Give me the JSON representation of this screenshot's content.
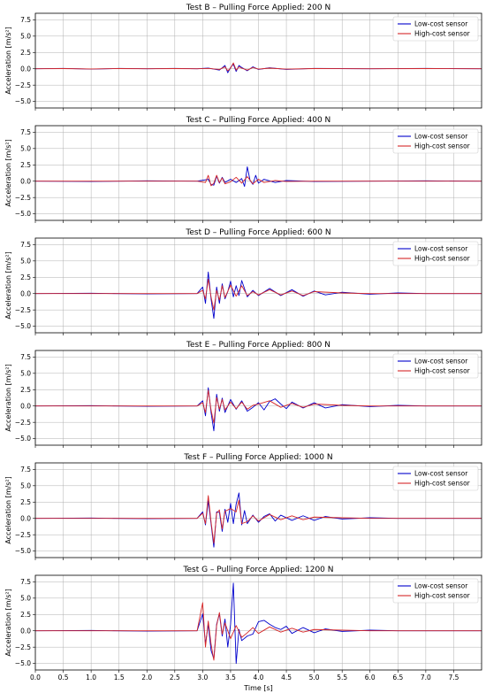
{
  "colors": {
    "low_cost": "#0000cc",
    "high_cost": "#d62728",
    "grid": "#b0b0b0"
  },
  "shared": {
    "xlabel": "Time [s]",
    "ylabel": "Acceleration [m/s²]",
    "xlim": [
      0,
      8
    ],
    "ylim": [
      -6,
      8.5
    ],
    "xticks": [
      "0.0",
      "0.5",
      "1.0",
      "1.5",
      "2.0",
      "2.5",
      "3.0",
      "3.5",
      "4.0",
      "4.5",
      "5.0",
      "5.5",
      "6.0",
      "6.5",
      "7.0",
      "7.5"
    ],
    "yticks": [
      "7.5",
      "5.0",
      "2.5",
      "0.0",
      "−2.5",
      "−5.0"
    ],
    "legend": [
      "Low-cost sensor",
      "High-cost sensor"
    ],
    "legend_position": "top-right",
    "grid": true
  },
  "chart_data": [
    {
      "type": "line",
      "title": "Test B – Pulling Force Applied: 200 N",
      "xlabel": "",
      "ylabel": "Acceleration [m/s²]",
      "xlim": [
        0,
        8
      ],
      "ylim": [
        -6,
        8.5
      ],
      "series": [
        {
          "name": "Low-cost sensor",
          "x": [
            0,
            0.5,
            1.0,
            1.5,
            2.0,
            2.5,
            2.9,
            3.1,
            3.3,
            3.4,
            3.45,
            3.5,
            3.55,
            3.6,
            3.65,
            3.7,
            3.8,
            3.9,
            4.0,
            4.2,
            4.5,
            5.0,
            6.0,
            7.0,
            8.0
          ],
          "y": [
            0,
            0.05,
            -0.05,
            0.05,
            0,
            0.05,
            0,
            0.1,
            -0.2,
            0.5,
            -0.6,
            0.2,
            0.7,
            -0.4,
            0.5,
            0.2,
            -0.3,
            0.3,
            -0.1,
            0.15,
            -0.1,
            0.05,
            0,
            0.05,
            0
          ]
        },
        {
          "name": "High-cost sensor",
          "x": [
            0,
            0.5,
            1.0,
            1.5,
            2.0,
            2.5,
            2.9,
            3.1,
            3.3,
            3.4,
            3.45,
            3.5,
            3.55,
            3.6,
            3.65,
            3.7,
            3.8,
            3.9,
            4.0,
            4.2,
            4.5,
            5.0,
            6.0,
            7.0,
            8.0
          ],
          "y": [
            0,
            0.03,
            -0.03,
            0.03,
            0,
            0.03,
            0,
            0.05,
            -0.1,
            0.3,
            -0.3,
            0.1,
            0.9,
            -0.2,
            0.3,
            0.1,
            -0.2,
            0.2,
            -0.05,
            0.1,
            -0.05,
            0.03,
            0,
            0.03,
            0
          ]
        }
      ]
    },
    {
      "type": "line",
      "title": "Test C – Pulling Force Applied: 400 N",
      "xlabel": "",
      "ylabel": "Acceleration [m/s²]",
      "xlim": [
        0,
        8
      ],
      "ylim": [
        -6,
        8.5
      ],
      "series": [
        {
          "name": "Low-cost sensor",
          "x": [
            0,
            1.0,
            2.0,
            2.9,
            3.1,
            3.15,
            3.2,
            3.25,
            3.3,
            3.35,
            3.4,
            3.5,
            3.6,
            3.7,
            3.75,
            3.8,
            3.85,
            3.9,
            3.95,
            4.0,
            4.1,
            4.3,
            4.5,
            5.0,
            6.0,
            7.0,
            8.0
          ],
          "y": [
            0,
            -0.05,
            0.05,
            0,
            0.3,
            -0.5,
            -0.6,
            0.8,
            -0.3,
            0.6,
            -0.2,
            0.3,
            -0.2,
            0.4,
            -0.8,
            2.2,
            0.1,
            -0.5,
            0.9,
            -0.3,
            0.3,
            -0.2,
            0.1,
            -0.05,
            0,
            0.05,
            0
          ]
        },
        {
          "name": "High-cost sensor",
          "x": [
            0,
            1.0,
            2.0,
            2.9,
            3.05,
            3.1,
            3.15,
            3.2,
            3.25,
            3.3,
            3.35,
            3.4,
            3.5,
            3.6,
            3.7,
            3.8,
            3.9,
            4.0,
            4.1,
            4.3,
            4.5,
            5.0,
            6.0,
            7.0,
            8.0
          ],
          "y": [
            0,
            0,
            0,
            0,
            -0.2,
            0.9,
            -0.7,
            -0.3,
            0.9,
            -0.2,
            0.5,
            -0.4,
            -0.1,
            0.6,
            -0.3,
            0.7,
            -0.4,
            0.3,
            -0.2,
            0.1,
            -0.05,
            0,
            0,
            0,
            0
          ]
        }
      ]
    },
    {
      "type": "line",
      "title": "Test D – Pulling Force Applied: 600 N",
      "xlabel": "",
      "ylabel": "Acceleration [m/s²]",
      "xlim": [
        0,
        8
      ],
      "ylim": [
        -6,
        8.5
      ],
      "series": [
        {
          "name": "Low-cost sensor",
          "x": [
            0,
            1.0,
            2.0,
            2.9,
            3.0,
            3.05,
            3.1,
            3.15,
            3.2,
            3.25,
            3.3,
            3.35,
            3.4,
            3.45,
            3.5,
            3.55,
            3.6,
            3.65,
            3.7,
            3.8,
            3.9,
            4.0,
            4.2,
            4.4,
            4.6,
            4.8,
            5.0,
            5.2,
            5.5,
            6.0,
            6.5,
            7.0,
            8.0
          ],
          "y": [
            0,
            0.05,
            -0.05,
            0,
            1.0,
            -1.5,
            3.3,
            -0.8,
            -3.8,
            1.0,
            -1.5,
            1.5,
            -0.8,
            0.3,
            1.9,
            -0.5,
            1.2,
            -0.3,
            2.0,
            -0.5,
            0.5,
            -0.3,
            0.8,
            -0.3,
            0.6,
            -0.4,
            0.4,
            -0.2,
            0.2,
            -0.1,
            0.1,
            0,
            0
          ]
        },
        {
          "name": "High-cost sensor",
          "x": [
            0,
            1.0,
            2.0,
            2.9,
            3.0,
            3.05,
            3.1,
            3.15,
            3.2,
            3.25,
            3.3,
            3.35,
            3.4,
            3.5,
            3.6,
            3.7,
            3.8,
            3.9,
            4.0,
            4.2,
            4.4,
            4.6,
            4.8,
            5.0,
            5.5,
            6.0,
            7.0,
            8.0
          ],
          "y": [
            0,
            0,
            0,
            0,
            0.5,
            -0.8,
            2.2,
            -0.5,
            -2.5,
            0.5,
            -1.0,
            1.2,
            -0.6,
            1.3,
            -0.4,
            1.2,
            -0.3,
            0.3,
            -0.2,
            0.6,
            -0.2,
            0.4,
            -0.3,
            0.3,
            0.1,
            0,
            0,
            0
          ]
        }
      ]
    },
    {
      "type": "line",
      "title": "Test E – Pulling Force Applied: 800 N",
      "xlabel": "",
      "ylabel": "Acceleration [m/s²]",
      "xlim": [
        0,
        8
      ],
      "ylim": [
        -6,
        8.5
      ],
      "series": [
        {
          "name": "Low-cost sensor",
          "x": [
            0,
            1.0,
            2.0,
            2.9,
            3.0,
            3.05,
            3.1,
            3.15,
            3.2,
            3.25,
            3.3,
            3.35,
            3.4,
            3.5,
            3.6,
            3.7,
            3.8,
            3.9,
            4.0,
            4.1,
            4.2,
            4.3,
            4.4,
            4.5,
            4.6,
            4.8,
            5.0,
            5.2,
            5.5,
            6.0,
            6.5,
            7.0,
            8.0
          ],
          "y": [
            0,
            0.05,
            -0.05,
            0,
            0.8,
            -1.5,
            2.8,
            -1.0,
            -3.8,
            1.8,
            -0.8,
            1.2,
            -1.0,
            1.0,
            -0.5,
            0.8,
            -0.8,
            -0.2,
            0.5,
            -0.6,
            0.7,
            1.1,
            0.3,
            -0.4,
            0.6,
            -0.3,
            0.5,
            -0.3,
            0.2,
            -0.1,
            0.1,
            0,
            0
          ]
        },
        {
          "name": "High-cost sensor",
          "x": [
            0,
            1.0,
            2.0,
            2.9,
            3.0,
            3.05,
            3.1,
            3.15,
            3.2,
            3.25,
            3.3,
            3.35,
            3.4,
            3.5,
            3.6,
            3.7,
            3.8,
            3.9,
            4.0,
            4.2,
            4.4,
            4.6,
            4.8,
            5.0,
            5.5,
            6.0,
            7.0,
            8.0
          ],
          "y": [
            0,
            0,
            0,
            0,
            0.5,
            -1.0,
            2.4,
            -0.6,
            -2.6,
            1.3,
            -0.5,
            1.0,
            -0.6,
            0.6,
            -0.4,
            0.6,
            -0.5,
            0.1,
            0.3,
            0.8,
            -0.2,
            0.4,
            -0.2,
            0.3,
            0.1,
            0,
            0,
            0
          ]
        }
      ]
    },
    {
      "type": "line",
      "title": "Test F – Pulling Force Applied: 1000 N",
      "xlabel": "",
      "ylabel": "Acceleration [m/s²]",
      "xlim": [
        0,
        8
      ],
      "ylim": [
        -6,
        8.5
      ],
      "series": [
        {
          "name": "Low-cost sensor",
          "x": [
            0,
            1.0,
            2.0,
            2.9,
            3.0,
            3.05,
            3.1,
            3.15,
            3.2,
            3.25,
            3.3,
            3.35,
            3.4,
            3.45,
            3.5,
            3.55,
            3.6,
            3.65,
            3.7,
            3.75,
            3.8,
            3.9,
            4.0,
            4.1,
            4.2,
            4.3,
            4.4,
            4.6,
            4.8,
            5.0,
            5.2,
            5.5,
            6.0,
            6.5,
            7.0,
            8.0
          ],
          "y": [
            0,
            0.05,
            -0.05,
            0,
            1.0,
            -1.0,
            2.7,
            -0.8,
            -4.4,
            1.0,
            0.9,
            -2.0,
            1.4,
            -0.6,
            2.3,
            -0.8,
            2.2,
            3.9,
            -1.0,
            1.2,
            -0.8,
            0.5,
            -0.6,
            0.3,
            0.7,
            -0.4,
            0.5,
            -0.3,
            0.4,
            -0.3,
            0.3,
            -0.1,
            0.1,
            0,
            0,
            0
          ]
        },
        {
          "name": "High-cost sensor",
          "x": [
            0,
            1.0,
            2.0,
            2.9,
            3.0,
            3.05,
            3.1,
            3.15,
            3.2,
            3.25,
            3.3,
            3.35,
            3.4,
            3.5,
            3.6,
            3.65,
            3.7,
            3.8,
            3.9,
            4.0,
            4.2,
            4.4,
            4.6,
            4.8,
            5.0,
            5.5,
            6.0,
            7.0,
            8.0
          ],
          "y": [
            0,
            0,
            0,
            0,
            0.8,
            -0.8,
            3.5,
            -0.5,
            -3.8,
            0.8,
            1.3,
            -1.6,
            1.1,
            1.5,
            1.0,
            2.8,
            -0.8,
            -0.5,
            0.4,
            -0.4,
            0.6,
            -0.2,
            0.4,
            -0.2,
            0.2,
            0.1,
            0,
            0,
            0
          ]
        }
      ]
    },
    {
      "type": "line",
      "title": "Test G – Pulling Force Applied: 1200 N",
      "xlabel": "Time [s]",
      "ylabel": "Acceleration [m/s²]",
      "xlim": [
        0,
        8
      ],
      "ylim": [
        -6,
        8.5
      ],
      "series": [
        {
          "name": "Low-cost sensor",
          "x": [
            0,
            1.0,
            2.0,
            2.9,
            3.0,
            3.05,
            3.1,
            3.15,
            3.2,
            3.25,
            3.3,
            3.35,
            3.4,
            3.45,
            3.5,
            3.55,
            3.6,
            3.65,
            3.7,
            3.8,
            3.9,
            4.0,
            4.1,
            4.2,
            4.3,
            4.4,
            4.5,
            4.6,
            4.8,
            5.0,
            5.2,
            5.5,
            6.0,
            6.5,
            7.0,
            8.0
          ],
          "y": [
            0,
            0.05,
            -0.05,
            0,
            2.6,
            -2.0,
            1.0,
            -3.0,
            -4.3,
            1.0,
            2.6,
            -0.8,
            1.8,
            -2.5,
            1.0,
            7.3,
            -5.0,
            0.2,
            -1.5,
            -0.8,
            -0.5,
            1.4,
            1.6,
            1.0,
            0.5,
            0.2,
            0.7,
            -0.4,
            0.5,
            -0.3,
            0.3,
            -0.1,
            0.1,
            0,
            0,
            0
          ]
        },
        {
          "name": "High-cost sensor",
          "x": [
            0,
            1.0,
            2.0,
            2.9,
            3.0,
            3.05,
            3.1,
            3.15,
            3.2,
            3.25,
            3.3,
            3.35,
            3.4,
            3.5,
            3.6,
            3.7,
            3.8,
            3.9,
            4.0,
            4.2,
            4.4,
            4.6,
            4.8,
            5.0,
            5.5,
            6.0,
            7.0,
            8.0
          ],
          "y": [
            0,
            0,
            0,
            0,
            4.3,
            -2.5,
            1.5,
            -2.0,
            -4.5,
            0.8,
            2.8,
            -0.5,
            1.2,
            -1.2,
            0.8,
            -1.0,
            -0.3,
            0.5,
            -0.4,
            0.6,
            -0.2,
            0.4,
            -0.2,
            0.2,
            0.1,
            0,
            0,
            0
          ]
        }
      ]
    }
  ]
}
